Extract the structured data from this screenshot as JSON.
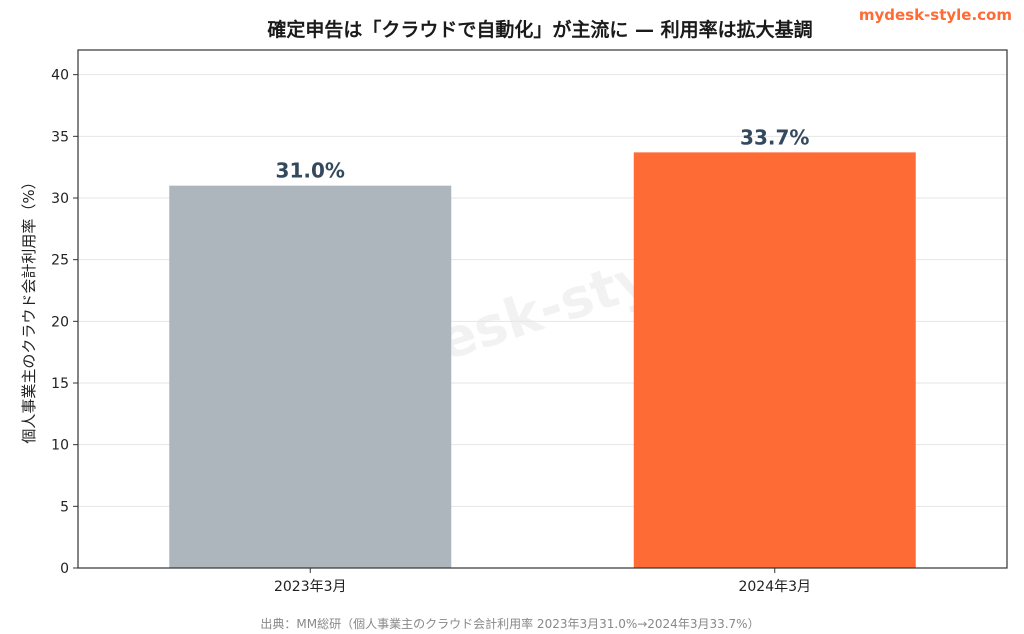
{
  "brand": {
    "text": "mydesk-style.com",
    "color": "#ff6b35"
  },
  "watermark": "mydesk-style.c",
  "source_note": "出典：MM総研（個人事業主のクラウド会計利用率 2023年3月31.0%→2024年3月33.7%）",
  "chart_data": {
    "type": "bar",
    "title": "確定申告は「クラウドで自動化」が主流に — 利用率は拡大基調",
    "xlabel": "",
    "ylabel": "個人事業主のクラウド会計利用率（%）",
    "categories": [
      "2023年3月",
      "2024年3月"
    ],
    "values": [
      31.0,
      33.7
    ],
    "value_labels": [
      "31.0%",
      "33.7%"
    ],
    "colors": [
      "#adb5bd",
      "#ff6b35"
    ],
    "label_color": "#34495e",
    "ylim": [
      0,
      42
    ],
    "yticks": [
      0,
      5,
      10,
      15,
      20,
      25,
      30,
      35,
      40
    ],
    "grid": true,
    "legend": "none"
  }
}
